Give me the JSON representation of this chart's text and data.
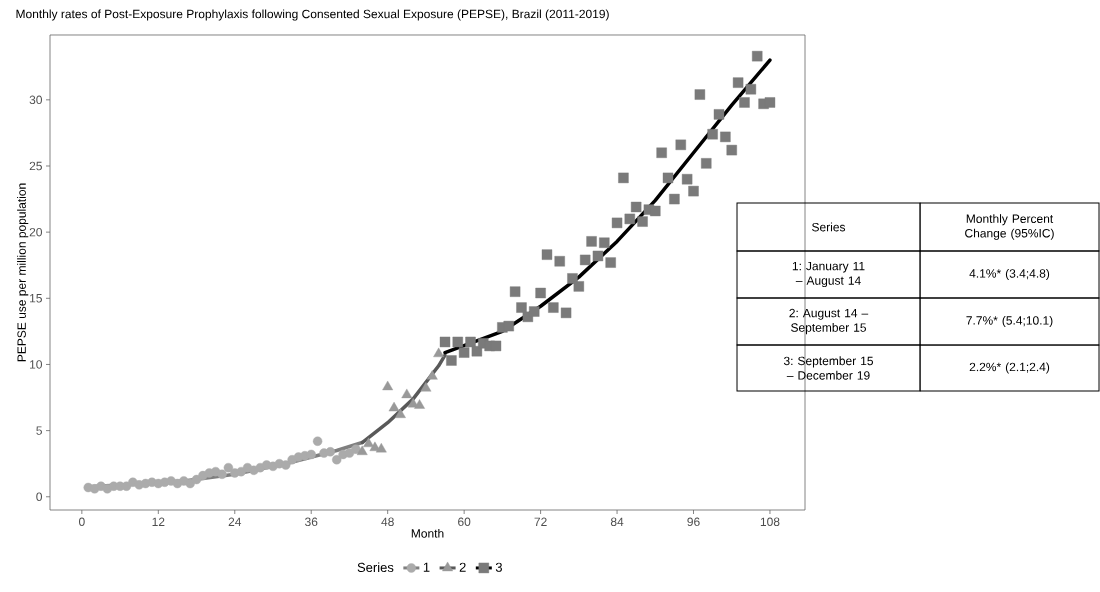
{
  "chart_data": {
    "type": "scatter",
    "title": "Monthly rates of Post-Exposure Prophylaxis following Consented Sexual Exposure (PEPSE), Brazil (2011-2019)",
    "xlabel": "Month",
    "ylabel": "PEPSE use per million population",
    "legend_title": "Series",
    "legend": "bottom",
    "xlim": [
      -5,
      113.5
    ],
    "ylim": [
      -1,
      34.9
    ],
    "xticks": [
      0,
      12,
      24,
      36,
      48,
      60,
      72,
      84,
      96,
      108
    ],
    "yticks": [
      0,
      5,
      10,
      15,
      20,
      25,
      30
    ],
    "series": [
      {
        "name": "1",
        "type": "scatter",
        "marker": "circle",
        "color": "#ababab",
        "x": [
          1,
          2,
          3,
          4,
          5,
          6,
          7,
          8,
          9,
          10,
          11,
          12,
          13,
          14,
          15,
          16,
          17,
          18,
          19,
          20,
          21,
          22,
          23,
          24,
          25,
          26,
          27,
          28,
          29,
          30,
          31,
          32,
          33,
          34,
          35,
          36,
          37,
          38,
          39,
          40,
          41,
          42,
          43
        ],
        "values": [
          0.7,
          0.6,
          0.8,
          0.6,
          0.8,
          0.8,
          0.8,
          1.1,
          0.9,
          1.0,
          1.1,
          1.0,
          1.1,
          1.2,
          1.0,
          1.2,
          1.0,
          1.3,
          1.6,
          1.8,
          1.9,
          1.7,
          2.2,
          1.8,
          1.9,
          2.2,
          2.0,
          2.2,
          2.4,
          2.3,
          2.5,
          2.4,
          2.8,
          3.0,
          3.1,
          3.2,
          4.2,
          3.3,
          3.4,
          2.8,
          3.2,
          3.3,
          3.6
        ]
      },
      {
        "type": "line",
        "color": "#7f7f7f",
        "x": [
          1,
          8,
          16,
          24,
          32,
          40,
          44
        ],
        "values": [
          0.75,
          0.95,
          1.2,
          1.7,
          2.5,
          3.5,
          4.1
        ]
      },
      {
        "name": "2",
        "type": "scatter",
        "marker": "triangle",
        "color": "#999999",
        "x": [
          44,
          45,
          46,
          47,
          48,
          49,
          50,
          51,
          52,
          53,
          54,
          55,
          56
        ],
        "values": [
          3.4,
          4.0,
          3.7,
          3.6,
          8.3,
          6.7,
          6.2,
          7.7,
          7.0,
          6.9,
          8.2,
          9.1,
          10.8
        ]
      },
      {
        "type": "line",
        "color": "#595959",
        "x": [
          44,
          48,
          52,
          56,
          57
        ],
        "values": [
          4.1,
          5.6,
          7.4,
          9.9,
          10.7
        ]
      },
      {
        "name": "3",
        "type": "scatter",
        "marker": "square",
        "color": "#7a7a7a",
        "x": [
          57,
          58,
          59,
          60,
          61,
          62,
          63,
          64,
          65,
          66,
          67,
          68,
          69,
          70,
          71,
          72,
          73,
          74,
          75,
          76,
          77,
          78,
          79,
          80,
          81,
          82,
          83,
          84,
          85,
          86,
          87,
          88,
          89,
          90,
          91,
          92,
          93,
          94,
          95,
          96,
          97,
          98,
          99,
          100,
          101,
          102,
          103,
          104,
          105,
          106,
          107,
          108
        ],
        "values": [
          11.7,
          10.3,
          11.7,
          10.9,
          11.7,
          11.0,
          11.6,
          11.4,
          11.4,
          12.8,
          12.9,
          15.5,
          14.3,
          13.6,
          14.0,
          15.4,
          18.3,
          14.3,
          17.8,
          13.9,
          16.5,
          15.9,
          17.9,
          19.3,
          18.2,
          19.2,
          17.7,
          20.7,
          24.1,
          21.0,
          21.9,
          20.8,
          21.7,
          21.6,
          26.0,
          24.1,
          22.5,
          26.6,
          24.0,
          23.1,
          30.4,
          25.2,
          27.4,
          28.9,
          27.2,
          26.2,
          31.3,
          29.8,
          30.8,
          33.3,
          29.7,
          29.8
        ]
      },
      {
        "type": "line",
        "color": "#000000",
        "x": [
          57,
          66,
          72,
          78,
          84,
          90,
          96,
          102,
          108
        ],
        "values": [
          10.9,
          12.5,
          14.4,
          16.6,
          19.3,
          22.4,
          26.0,
          29.6,
          33.0
        ]
      }
    ],
    "annotations": [
      "Series",
      "Monthly Percent Change (95%IC)",
      "1: January 11 – August 14",
      "4.1%* (3.4;4.8)",
      "2: August 14 – September 15",
      "7.7%* (5.4;10.1)",
      "3: September 15 – December 19",
      "2.2%* (2.1;2.4)"
    ]
  }
}
